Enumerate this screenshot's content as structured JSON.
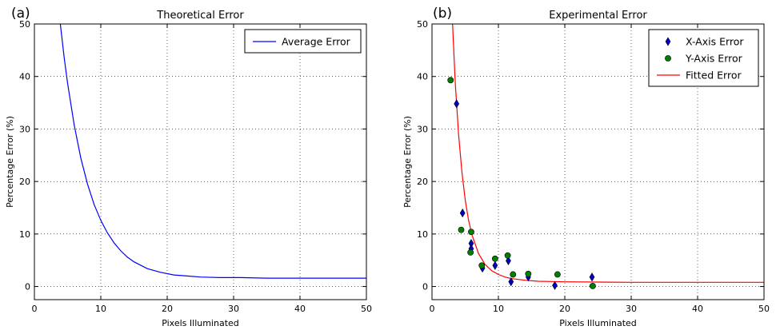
{
  "chart_data": [
    {
      "panel": "(a)",
      "type": "line",
      "title": "Theoretical Error",
      "xlabel": "Pixels Illuminated",
      "ylabel": "Percentage Error (%)",
      "xlim": [
        0,
        50
      ],
      "ylim": [
        -2.5,
        50
      ],
      "xticks": [
        0,
        10,
        20,
        30,
        40,
        50
      ],
      "yticks": [
        0,
        10,
        20,
        30,
        40,
        50
      ],
      "grid": true,
      "legend_position": "top-right",
      "series": [
        {
          "name": "Average Error",
          "style": "line",
          "color": "#0000ff",
          "x": [
            3.9,
            4.5,
            5,
            6,
            7,
            8,
            9,
            10,
            11,
            12,
            13,
            14,
            15,
            17,
            19,
            21,
            23,
            25,
            28,
            31,
            35,
            40,
            45,
            50
          ],
          "y": [
            50.0,
            43.5,
            38.7,
            30.7,
            24.4,
            19.5,
            15.6,
            12.6,
            10.2,
            8.3,
            6.8,
            5.6,
            4.7,
            3.4,
            2.7,
            2.2,
            2.0,
            1.8,
            1.7,
            1.7,
            1.6,
            1.6,
            1.6,
            1.6
          ]
        }
      ]
    },
    {
      "panel": "(b)",
      "type": "scatter",
      "title": "Experimental Error",
      "xlabel": "Pixels Illuminated",
      "ylabel": "Percentage Error (%)",
      "xlim": [
        0,
        50
      ],
      "ylim": [
        -2.5,
        50
      ],
      "xticks": [
        0,
        10,
        20,
        30,
        40,
        50
      ],
      "yticks": [
        0,
        10,
        20,
        30,
        40,
        50
      ],
      "grid": true,
      "legend_position": "top-right",
      "series": [
        {
          "name": "X-Axis Error",
          "style": "diamond",
          "color": "#0000cc",
          "x": [
            3.7,
            4.6,
            5.9,
            5.9,
            7.6,
            9.5,
            11.5,
            11.9,
            14.5,
            18.5,
            24.1
          ],
          "y": [
            34.8,
            14.0,
            8.2,
            7.2,
            3.5,
            4.0,
            4.9,
            0.9,
            1.8,
            0.2,
            1.8
          ]
        },
        {
          "name": "Y-Axis Error",
          "style": "circle",
          "color": "#008000",
          "x": [
            2.8,
            4.4,
            5.8,
            5.9,
            7.5,
            9.5,
            11.4,
            12.2,
            14.5,
            18.9,
            24.2
          ],
          "y": [
            39.3,
            10.8,
            6.5,
            10.4,
            4.0,
            5.3,
            5.9,
            2.3,
            2.4,
            2.3,
            0.1
          ]
        },
        {
          "name": "Fitted Error",
          "style": "line",
          "color": "#ff0000",
          "x": [
            3.1,
            3.5,
            4,
            4.5,
            5,
            5.5,
            6,
            7,
            8,
            9,
            10,
            11,
            12,
            14,
            16,
            18,
            20,
            25,
            30,
            40,
            50
          ],
          "y": [
            50.0,
            39.0,
            29.0,
            21.8,
            16.5,
            12.7,
            9.9,
            6.3,
            4.2,
            3.0,
            2.3,
            1.8,
            1.5,
            1.2,
            1.0,
            0.95,
            0.9,
            0.85,
            0.8,
            0.8,
            0.8
          ]
        }
      ]
    }
  ]
}
